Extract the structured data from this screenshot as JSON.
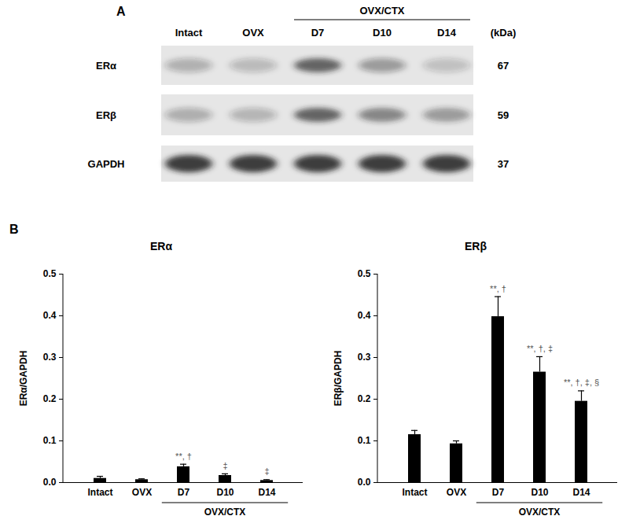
{
  "panel_a": {
    "label": "A",
    "lanes": [
      "Intact",
      "OVX",
      "D7",
      "D10",
      "D14"
    ],
    "group": {
      "label": "OVX/CTX",
      "lanes": [
        "D7",
        "D10",
        "D14"
      ]
    },
    "unit_label": "(kDa)",
    "rows": [
      {
        "name": "ERα",
        "kda": 67
      },
      {
        "name": "ERβ",
        "kda": 59
      },
      {
        "name": "GAPDH",
        "kda": 37
      }
    ]
  },
  "panel_b_label": "B",
  "chart_data": [
    {
      "type": "bar",
      "title": "ERα",
      "ylabel": "ERα/GAPDH",
      "categories": [
        "Intact",
        "OVX",
        "D7",
        "D10",
        "D14"
      ],
      "values": [
        0.01,
        0.007,
        0.038,
        0.017,
        0.005
      ],
      "errors": [
        0.005,
        0.002,
        0.006,
        0.004,
        0.002
      ],
      "annotations": [
        null,
        null,
        "**, †",
        "‡",
        "‡"
      ],
      "group": {
        "label": "OVX/CTX",
        "categories": [
          "D7",
          "D10",
          "D14"
        ]
      },
      "color": "#000000",
      "ylim": [
        0,
        0.5
      ],
      "yticks": [
        {
          "value": 0,
          "label": "0.0"
        },
        0.1,
        0.2,
        0.3,
        0.4,
        0.5
      ]
    },
    {
      "type": "bar",
      "title": "ERβ",
      "ylabel": "ERβ/GAPDH",
      "categories": [
        "Intact",
        "OVX",
        "D7",
        "D10",
        "D14"
      ],
      "values": [
        0.115,
        0.093,
        0.398,
        0.265,
        0.195
      ],
      "errors": [
        0.01,
        0.007,
        0.048,
        0.037,
        0.025
      ],
      "annotations": [
        null,
        null,
        "**, †",
        "**, †, ‡",
        "**, †, ‡, §"
      ],
      "group": {
        "label": "OVX/CTX",
        "categories": [
          "D7",
          "D10",
          "D14"
        ]
      },
      "color": "#000000",
      "ylim": [
        0,
        0.5
      ],
      "yticks": [
        {
          "value": 0,
          "label": "0.0"
        },
        0.1,
        0.2,
        0.3,
        0.4,
        0.5
      ]
    }
  ]
}
